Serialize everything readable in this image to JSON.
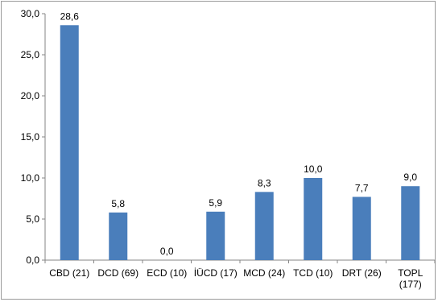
{
  "chart_data": {
    "type": "bar",
    "title": "",
    "xlabel": "",
    "ylabel": "",
    "ylim": [
      0,
      30
    ],
    "yticks": [
      "0,0",
      "5,0",
      "10,0",
      "15,0",
      "20,0",
      "25,0",
      "30,0"
    ],
    "grid": false,
    "legend": "none",
    "bar_color": "#4a7ebb",
    "categories": [
      [
        "CBD (21)"
      ],
      [
        "DCD (69)"
      ],
      [
        "ECD (10)"
      ],
      [
        "İÜCD (17)"
      ],
      [
        "MCD (24)"
      ],
      [
        "TCD (10)"
      ],
      [
        "DRT (26)"
      ],
      [
        "TOPL",
        "(177)"
      ]
    ],
    "values": [
      28.6,
      5.8,
      0.0,
      5.9,
      8.3,
      10.0,
      7.7,
      9.0
    ],
    "data_labels": [
      "28,6",
      "5,8",
      "0,0",
      "5,9",
      "8,3",
      "10,0",
      "7,7",
      "9,0"
    ]
  }
}
